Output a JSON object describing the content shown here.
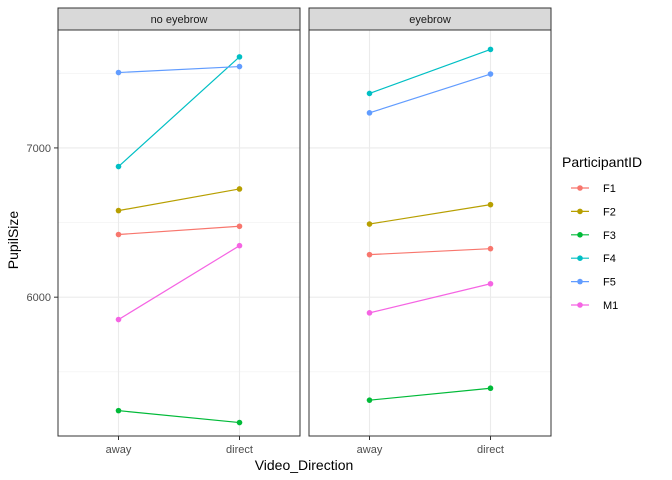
{
  "chart_data": {
    "type": "line",
    "xlabel": "Video_Direction",
    "ylabel": "PupilSize",
    "categories": [
      "away",
      "direct"
    ],
    "ylim": [
      5070,
      7790
    ],
    "y_ticks": [
      6000,
      7000
    ],
    "y_minor_ticks": [
      5500,
      6500,
      7500
    ],
    "grid": true,
    "legend": {
      "title": "ParticipantID",
      "placement": "right"
    },
    "panels": [
      {
        "title": "no eyebrow",
        "series": [
          {
            "name": "F1",
            "values": [
              6420,
              6475
            ]
          },
          {
            "name": "F2",
            "values": [
              6580,
              6725
            ]
          },
          {
            "name": "F3",
            "values": [
              5240,
              5160
            ]
          },
          {
            "name": "F4",
            "values": [
              6875,
              7610
            ]
          },
          {
            "name": "F5",
            "values": [
              7505,
              7545
            ]
          },
          {
            "name": "M1",
            "values": [
              5850,
              6345
            ]
          }
        ]
      },
      {
        "title": "eyebrow",
        "series": [
          {
            "name": "F1",
            "values": [
              6285,
              6325
            ]
          },
          {
            "name": "F2",
            "values": [
              6490,
              6620
            ]
          },
          {
            "name": "F3",
            "values": [
              5310,
              5390
            ]
          },
          {
            "name": "F4",
            "values": [
              7365,
              7660
            ]
          },
          {
            "name": "F5",
            "values": [
              7235,
              7495
            ]
          },
          {
            "name": "M1",
            "values": [
              5895,
              6090
            ]
          }
        ]
      }
    ],
    "series_colors": {
      "F1": "#F8766D",
      "F2": "#B79F00",
      "F3": "#00BA38",
      "F4": "#00BFC4",
      "F5": "#619CFF",
      "M1": "#F564E3"
    }
  }
}
